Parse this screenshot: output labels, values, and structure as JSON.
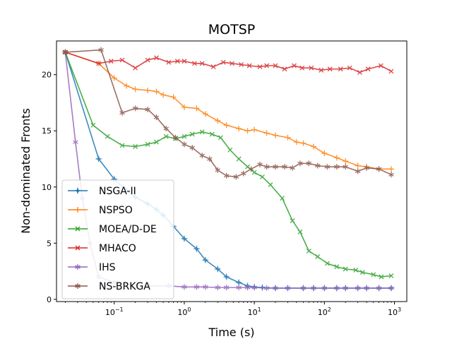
{
  "chart_data": {
    "type": "line",
    "title": "MOTSP",
    "xlabel": "Time (s)",
    "ylabel": "Non-dominated Fronts",
    "xscale": "log",
    "xlim": [
      0.015,
      1500
    ],
    "ylim": [
      -0.2,
      23
    ],
    "yticks": [
      0,
      5,
      10,
      15,
      20
    ],
    "xticks": [
      0.1,
      1,
      10,
      100,
      1000
    ],
    "xtick_labels": [
      {
        "base": "10",
        "exp": "−1"
      },
      {
        "base": "10",
        "exp": "0"
      },
      {
        "base": "10",
        "exp": "1"
      },
      {
        "base": "10",
        "exp": "2"
      },
      {
        "base": "10",
        "exp": "3"
      }
    ],
    "grid": false,
    "legend_position": "lower-left",
    "series": [
      {
        "name": "NSGA-II",
        "color": "#1f77b4",
        "marker": "star4",
        "points": [
          [
            0.02,
            22
          ],
          [
            0.06,
            12.5
          ],
          [
            0.1,
            10.7
          ],
          [
            0.15,
            9.7
          ],
          [
            0.2,
            9.1
          ],
          [
            0.3,
            8.5
          ],
          [
            0.4,
            8.0
          ],
          [
            0.5,
            7.5
          ],
          [
            0.7,
            6.5
          ],
          [
            1.0,
            5.4
          ],
          [
            1.5,
            4.5
          ],
          [
            2.0,
            3.5
          ],
          [
            3.0,
            2.7
          ],
          [
            4.0,
            2.0
          ],
          [
            6.0,
            1.5
          ],
          [
            8.0,
            1.2
          ],
          [
            10,
            1.1
          ],
          [
            13,
            1.05
          ],
          [
            20,
            1.0
          ],
          [
            30,
            1.0
          ],
          [
            50,
            1.0
          ],
          [
            70,
            1.0
          ],
          [
            100,
            1.0
          ],
          [
            150,
            1.0
          ],
          [
            200,
            1.0
          ],
          [
            300,
            1.0
          ],
          [
            400,
            1.0
          ],
          [
            600,
            1.0
          ],
          [
            900,
            1.0
          ]
        ]
      },
      {
        "name": "NSPSO",
        "color": "#ff7f0e",
        "marker": "plus",
        "points": [
          [
            0.02,
            22
          ],
          [
            0.06,
            21.0
          ],
          [
            0.1,
            19.7
          ],
          [
            0.15,
            19.0
          ],
          [
            0.2,
            18.7
          ],
          [
            0.3,
            18.6
          ],
          [
            0.4,
            18.5
          ],
          [
            0.5,
            18.2
          ],
          [
            0.7,
            18.0
          ],
          [
            1.0,
            17.1
          ],
          [
            1.5,
            17.0
          ],
          [
            2.0,
            16.5
          ],
          [
            3.0,
            15.9
          ],
          [
            4.0,
            15.5
          ],
          [
            6.0,
            15.2
          ],
          [
            8.0,
            15.0
          ],
          [
            10,
            15.1
          ],
          [
            15,
            14.8
          ],
          [
            20,
            14.6
          ],
          [
            30,
            14.4
          ],
          [
            40,
            14.0
          ],
          [
            50,
            13.9
          ],
          [
            70,
            13.6
          ],
          [
            100,
            13.0
          ],
          [
            150,
            12.6
          ],
          [
            200,
            12.3
          ],
          [
            300,
            11.9
          ],
          [
            400,
            11.8
          ],
          [
            600,
            11.6
          ],
          [
            900,
            11.6
          ]
        ]
      },
      {
        "name": "MOEA/D-DE",
        "color": "#2ca02c",
        "marker": "x",
        "points": [
          [
            0.02,
            22
          ],
          [
            0.05,
            15.5
          ],
          [
            0.08,
            14.5
          ],
          [
            0.13,
            13.7
          ],
          [
            0.2,
            13.6
          ],
          [
            0.3,
            13.8
          ],
          [
            0.4,
            14.0
          ],
          [
            0.55,
            14.5
          ],
          [
            0.75,
            14.3
          ],
          [
            1.0,
            14.5
          ],
          [
            1.3,
            14.7
          ],
          [
            1.8,
            14.9
          ],
          [
            2.5,
            14.7
          ],
          [
            3.3,
            14.4
          ],
          [
            4.5,
            13.3
          ],
          [
            6.0,
            12.5
          ],
          [
            8.0,
            11.8
          ],
          [
            10,
            11.3
          ],
          [
            13,
            10.9
          ],
          [
            17,
            10.2
          ],
          [
            25,
            9.0
          ],
          [
            35,
            7.0
          ],
          [
            45,
            6.0
          ],
          [
            60,
            4.3
          ],
          [
            80,
            3.8
          ],
          [
            110,
            3.2
          ],
          [
            150,
            2.9
          ],
          [
            200,
            2.7
          ],
          [
            280,
            2.6
          ],
          [
            350,
            2.4
          ],
          [
            500,
            2.2
          ],
          [
            650,
            2.0
          ],
          [
            900,
            2.1
          ]
        ]
      },
      {
        "name": "MHACO",
        "color": "#d62728",
        "marker": "x",
        "points": [
          [
            0.02,
            22
          ],
          [
            0.06,
            21.0
          ],
          [
            0.09,
            21.2
          ],
          [
            0.13,
            21.3
          ],
          [
            0.2,
            20.6
          ],
          [
            0.3,
            21.3
          ],
          [
            0.4,
            21.5
          ],
          [
            0.6,
            21.1
          ],
          [
            0.8,
            21.2
          ],
          [
            1.0,
            21.2
          ],
          [
            1.4,
            21.0
          ],
          [
            1.8,
            21.0
          ],
          [
            2.6,
            20.7
          ],
          [
            3.6,
            21.1
          ],
          [
            4.8,
            21.0
          ],
          [
            6.5,
            20.9
          ],
          [
            8.5,
            20.8
          ],
          [
            12,
            20.7
          ],
          [
            15,
            20.8
          ],
          [
            20,
            20.8
          ],
          [
            27,
            20.5
          ],
          [
            37,
            20.8
          ],
          [
            48,
            20.6
          ],
          [
            65,
            20.6
          ],
          [
            90,
            20.4
          ],
          [
            120,
            20.5
          ],
          [
            170,
            20.5
          ],
          [
            230,
            20.6
          ],
          [
            320,
            20.2
          ],
          [
            420,
            20.5
          ],
          [
            640,
            20.8
          ],
          [
            900,
            20.3
          ]
        ]
      },
      {
        "name": "IHS",
        "color": "#9467bd",
        "marker": "star6",
        "points": [
          [
            0.02,
            22
          ],
          [
            0.028,
            14
          ],
          [
            0.035,
            9
          ],
          [
            0.045,
            5
          ],
          [
            0.06,
            2
          ],
          [
            0.1,
            1.5
          ],
          [
            0.3,
            1.2
          ],
          [
            0.6,
            1.2
          ],
          [
            1.0,
            1.1
          ],
          [
            1.5,
            1.1
          ],
          [
            2.0,
            1.1
          ],
          [
            3.0,
            1.05
          ],
          [
            4.0,
            1.05
          ],
          [
            6.0,
            1.05
          ],
          [
            8.0,
            1.05
          ],
          [
            10,
            1.05
          ],
          [
            15,
            1.0
          ],
          [
            20,
            1.0
          ],
          [
            30,
            1.0
          ],
          [
            50,
            1.0
          ],
          [
            70,
            1.0
          ],
          [
            100,
            1.0
          ],
          [
            150,
            1.0
          ],
          [
            200,
            1.0
          ],
          [
            300,
            1.0
          ],
          [
            400,
            1.0
          ],
          [
            600,
            1.0
          ],
          [
            900,
            1.0
          ]
        ]
      },
      {
        "name": "NS-BRKGA",
        "color": "#8c564b",
        "marker": "star6",
        "points": [
          [
            0.02,
            22
          ],
          [
            0.065,
            22.2
          ],
          [
            0.13,
            16.6
          ],
          [
            0.2,
            17.0
          ],
          [
            0.3,
            16.9
          ],
          [
            0.4,
            16.2
          ],
          [
            0.55,
            15.2
          ],
          [
            0.75,
            14.4
          ],
          [
            1.0,
            13.8
          ],
          [
            1.3,
            13.5
          ],
          [
            1.8,
            12.8
          ],
          [
            2.3,
            12.5
          ],
          [
            3.0,
            11.5
          ],
          [
            4.0,
            11.0
          ],
          [
            5.5,
            10.9
          ],
          [
            7.0,
            11.2
          ],
          [
            9.0,
            11.6
          ],
          [
            12,
            12.0
          ],
          [
            15,
            11.8
          ],
          [
            20,
            11.8
          ],
          [
            27,
            11.8
          ],
          [
            35,
            11.7
          ],
          [
            45,
            12.1
          ],
          [
            60,
            12.1
          ],
          [
            80,
            11.9
          ],
          [
            110,
            11.8
          ],
          [
            150,
            11.8
          ],
          [
            200,
            11.8
          ],
          [
            300,
            11.4
          ],
          [
            400,
            11.7
          ],
          [
            600,
            11.6
          ],
          [
            900,
            11.1
          ]
        ]
      }
    ]
  }
}
